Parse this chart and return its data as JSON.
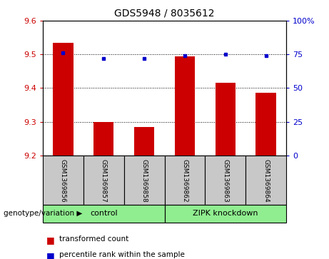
{
  "title": "GDS5948 / 8035612",
  "samples": [
    "GSM1369856",
    "GSM1369857",
    "GSM1369858",
    "GSM1369862",
    "GSM1369863",
    "GSM1369864"
  ],
  "red_values": [
    9.535,
    9.3,
    9.285,
    9.495,
    9.415,
    9.385
  ],
  "blue_values": [
    9.505,
    9.487,
    9.487,
    9.497,
    9.5,
    9.497
  ],
  "ylim_left": [
    9.2,
    9.6
  ],
  "ylim_right": [
    0,
    100
  ],
  "yticks_left": [
    9.2,
    9.3,
    9.4,
    9.5,
    9.6
  ],
  "yticks_right": [
    0,
    25,
    50,
    75,
    100
  ],
  "grid_values": [
    9.3,
    9.4,
    9.5
  ],
  "bar_color": "#cc0000",
  "dot_color": "#0000cc",
  "group1_label": "control",
  "group2_label": "ZIPK knockdown",
  "group1_color": "#90ee90",
  "group2_color": "#90ee90",
  "sample_bg_color": "#c8c8c8",
  "legend_red_label": "transformed count",
  "legend_blue_label": "percentile rank within the sample",
  "genotype_label": "genotype/variation",
  "bar_width": 0.5,
  "base_value": 9.2,
  "right_tick_labels": [
    "0",
    "25",
    "50",
    "75",
    "100%"
  ]
}
